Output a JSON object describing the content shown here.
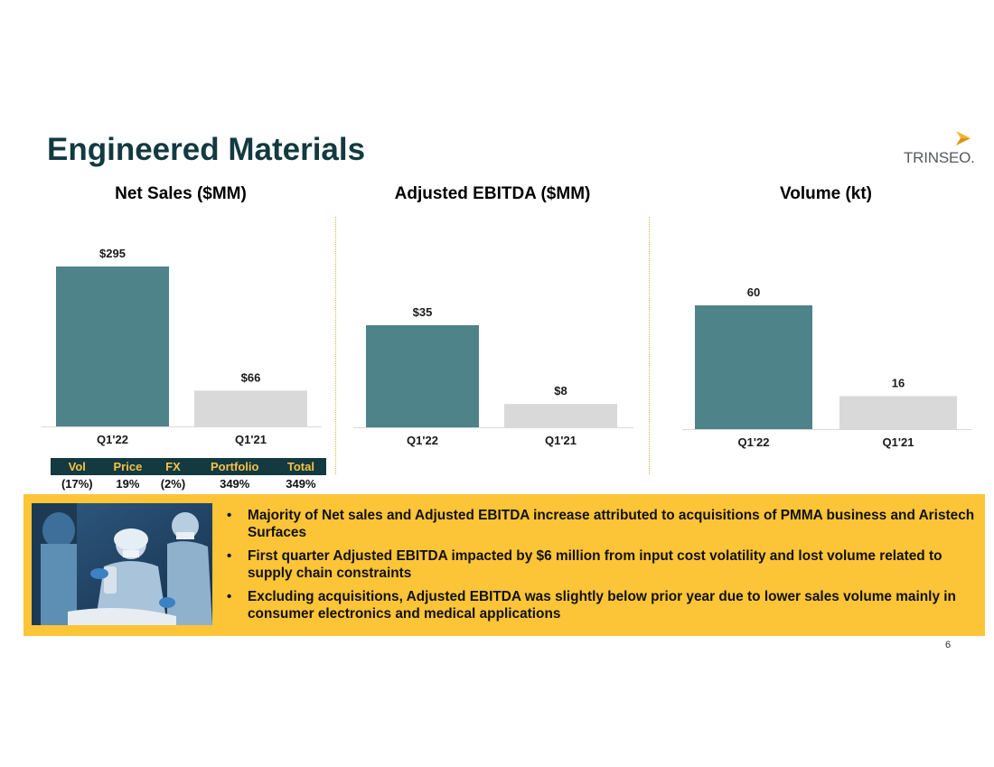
{
  "slide": {
    "title": "Engineered Materials",
    "logo_text": "TRINSEO.",
    "page_number": "6"
  },
  "colors": {
    "current": "#4e8389",
    "prior": "#d9d9d9",
    "title": "#123a40",
    "callout_bg": "#fcc437",
    "logo_mark": "#f3b52c"
  },
  "chart_data": [
    {
      "type": "bar",
      "title": "Net Sales ($MM)",
      "categories": [
        "Q1'22",
        "Q1'21"
      ],
      "values": [
        295,
        66
      ],
      "value_labels": [
        "$295",
        "$66"
      ],
      "ylim": [
        0,
        295
      ]
    },
    {
      "type": "bar",
      "title": "Adjusted EBITDA ($MM)",
      "categories": [
        "Q1'22",
        "Q1'21"
      ],
      "values": [
        35,
        8
      ],
      "value_labels": [
        "$35",
        "$8"
      ],
      "ylim": [
        0,
        35
      ]
    },
    {
      "type": "bar",
      "title": "Volume (kt)",
      "categories": [
        "Q1'22",
        "Q1'21"
      ],
      "values": [
        60,
        16
      ],
      "value_labels": [
        "60",
        "16"
      ],
      "ylim": [
        0,
        60
      ]
    }
  ],
  "bridge_table": {
    "headers": [
      "Vol",
      "Price",
      "FX",
      "Portfolio",
      "Total"
    ],
    "values": [
      "(17%)",
      "19%",
      "(2%)",
      "349%",
      "349%"
    ]
  },
  "callout": {
    "image_icon": "medical-team-photo",
    "bullets": [
      "Majority of Net sales and Adjusted EBITDA increase attributed to acquisitions of PMMA business and Aristech Surfaces",
      "First quarter Adjusted EBITDA impacted by $6 million from input cost volatility and lost volume related to supply chain constraints",
      "Excluding acquisitions, Adjusted EBITDA was slightly below prior year due to lower sales volume mainly in consumer electronics and medical applications"
    ]
  }
}
